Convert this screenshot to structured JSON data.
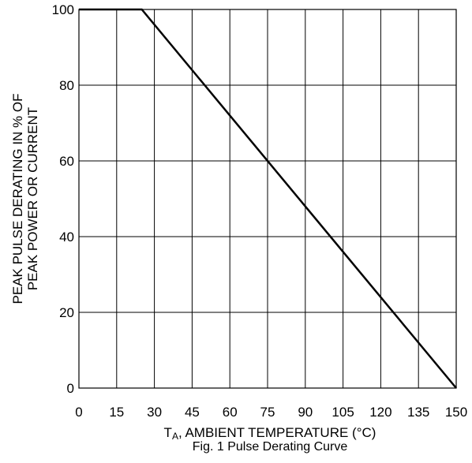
{
  "chart_data": {
    "type": "line",
    "caption": "Fig. 1 Pulse Derating Curve",
    "xlabel": {
      "symbol": "T",
      "subscript": "A",
      "text": ", AMBIENT TEMPERATURE (°C)"
    },
    "ylabel": {
      "line1": "PEAK PULSE DERATING IN % OF",
      "line2": "PEAK POWER OR CURRENT"
    },
    "xlim": [
      0,
      150
    ],
    "ylim": [
      0,
      100
    ],
    "x_ticks": [
      0,
      15,
      30,
      45,
      60,
      75,
      90,
      105,
      120,
      135,
      150
    ],
    "y_ticks": [
      0,
      20,
      40,
      60,
      80,
      100
    ],
    "grid": true,
    "series": [
      {
        "x": [
          0,
          25,
          150
        ],
        "y": [
          100,
          100,
          0
        ],
        "color": "#000000"
      }
    ]
  }
}
